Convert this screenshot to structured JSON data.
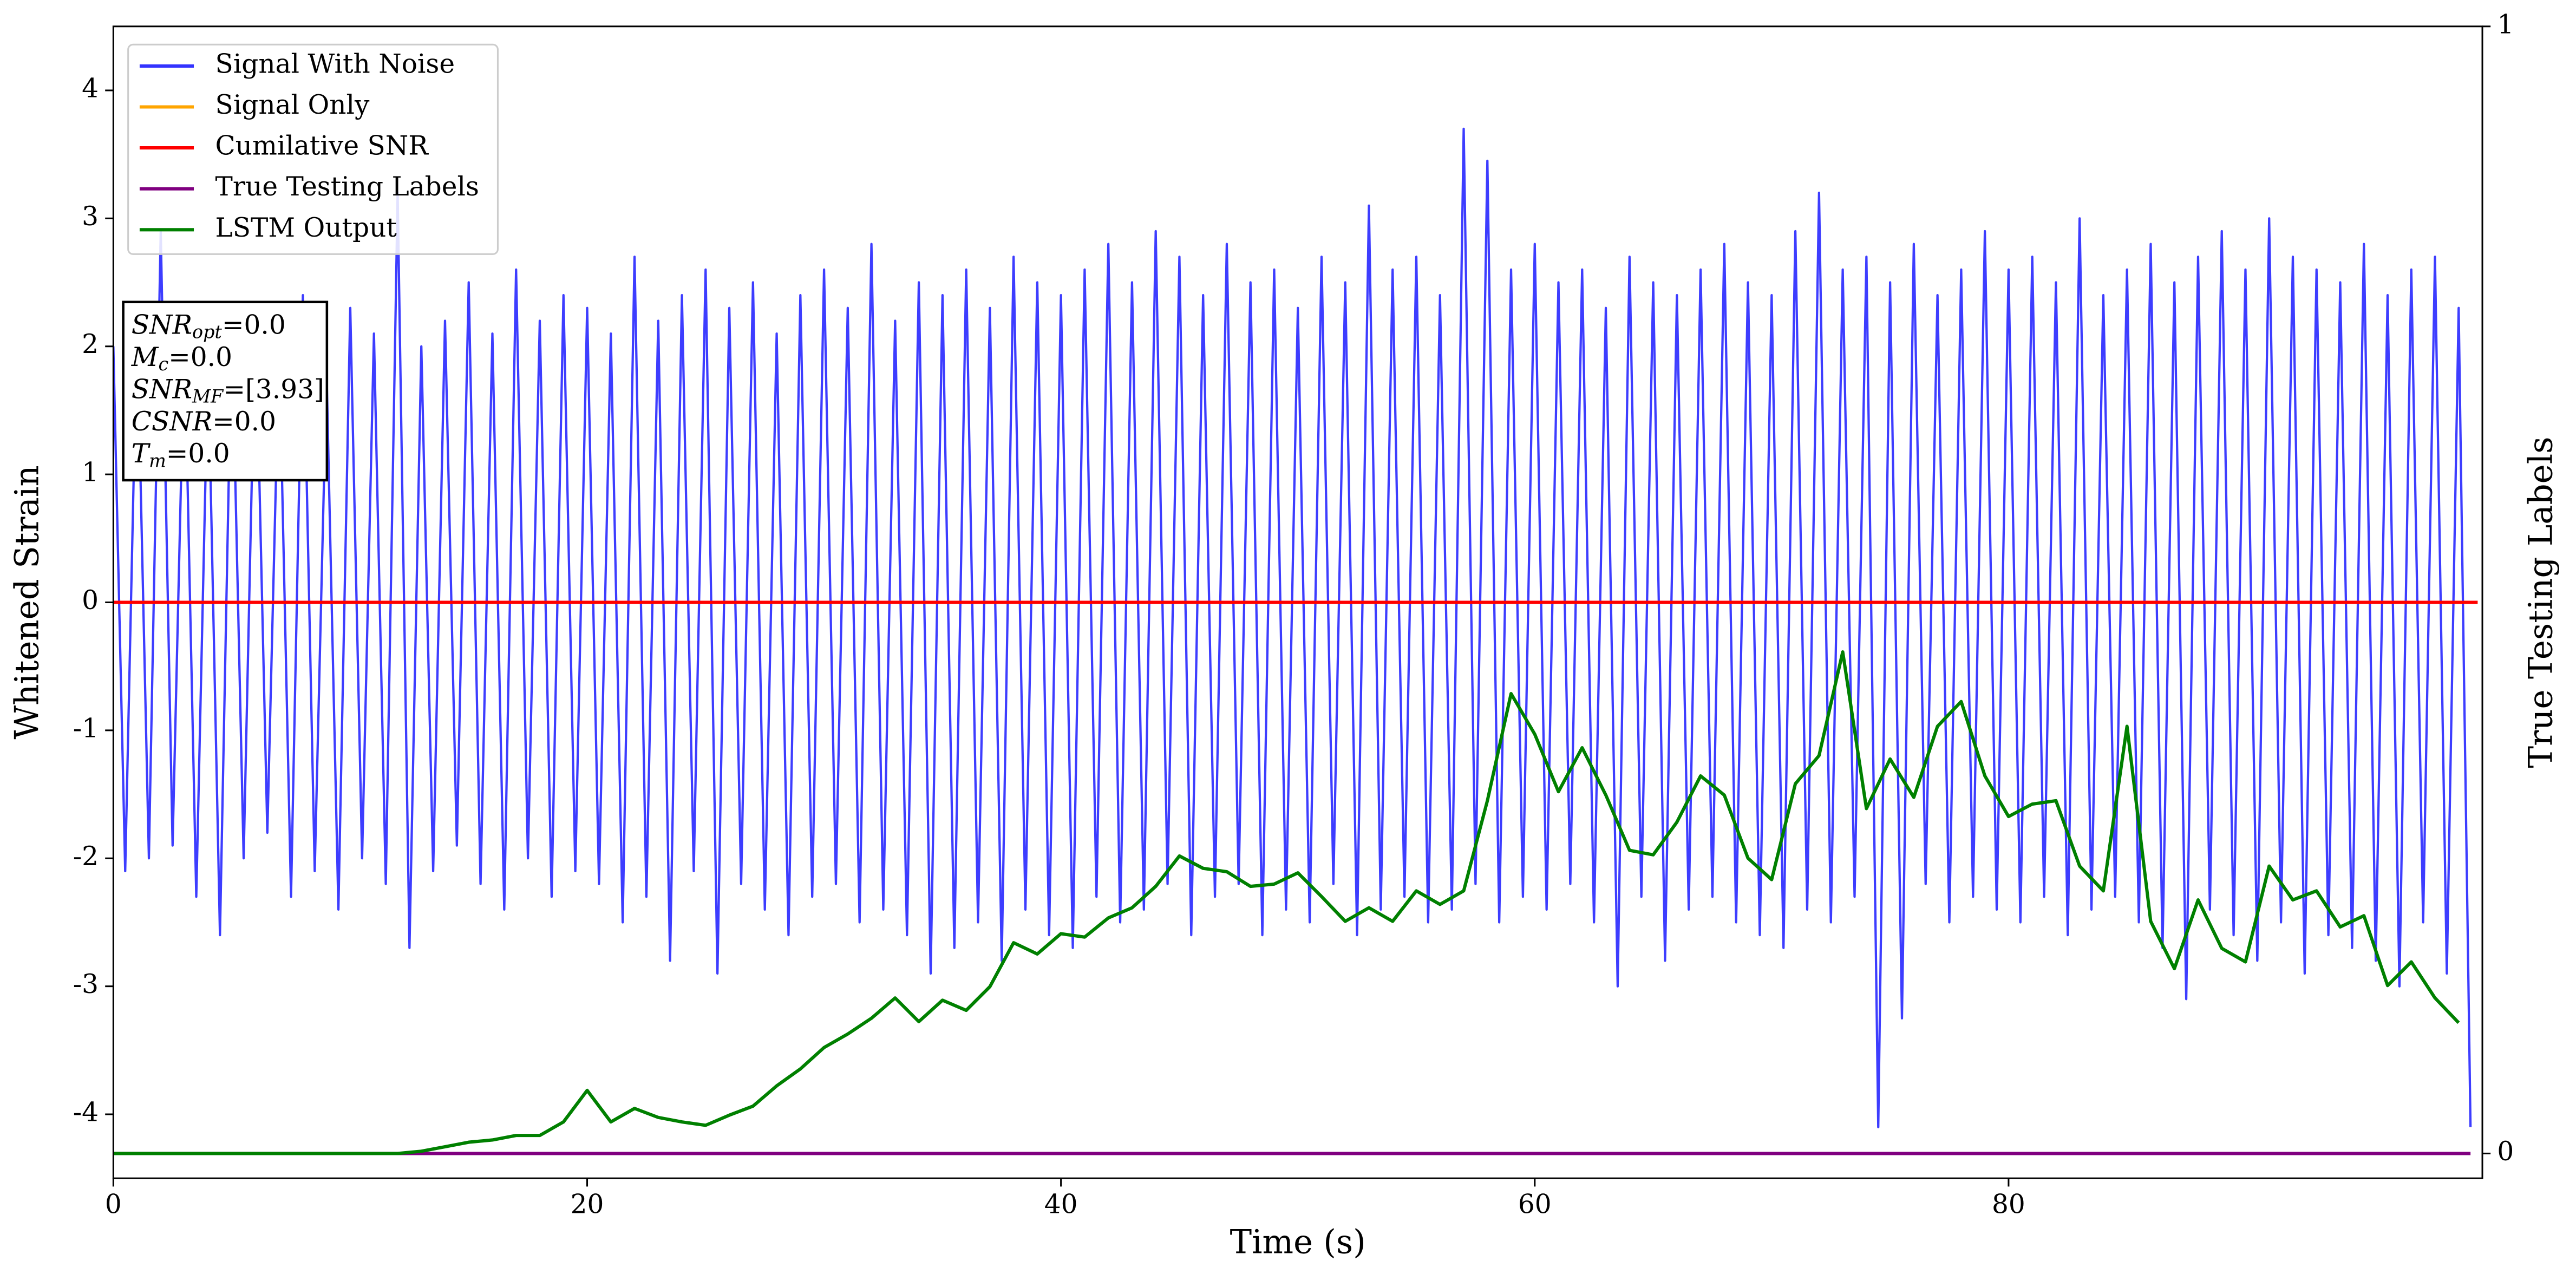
{
  "chart_data": {
    "type": "line",
    "xlabel": "Time (s)",
    "ylabel": "Whitened Strain",
    "y2label": "True Testing Labels",
    "xlim": [
      0,
      100
    ],
    "ylim": [
      -4.5,
      4.5
    ],
    "y2lim": [
      -0.022,
      1
    ],
    "xticks": [
      0,
      20,
      40,
      60,
      80
    ],
    "yticks": [
      -4,
      -3,
      -2,
      -1,
      0,
      1,
      2,
      3,
      4
    ],
    "y2ticks": [
      0,
      1
    ],
    "legend": "upper left",
    "annotation": [
      {
        "symbol": "SNR",
        "subscript": "opt",
        "text": "=0.0"
      },
      {
        "symbol": "M",
        "subscript": "c",
        "text": "=0.0"
      },
      {
        "symbol": "SNR",
        "subscript": "MF",
        "text": "=[3.93]"
      },
      {
        "symbol": "CSNR",
        "text": "=0.0"
      },
      {
        "symbol": "T",
        "subscript": "m",
        "text": "=0.0"
      }
    ],
    "series": [
      {
        "name": "Signal With Noise",
        "color": "#3333ff",
        "x": [
          0,
          0.5,
          1,
          1.5,
          2,
          2.5,
          3,
          3.5,
          4,
          4.5,
          5,
          5.5,
          6,
          6.5,
          7,
          7.5,
          8,
          8.5,
          9,
          9.5,
          10,
          10.5,
          11,
          11.5,
          12,
          12.5,
          13,
          13.5,
          14,
          14.5,
          15,
          15.5,
          16,
          16.5,
          17,
          17.5,
          18,
          18.5,
          19,
          19.5,
          20,
          20.5,
          21,
          21.5,
          22,
          22.5,
          23,
          23.5,
          24,
          24.5,
          25,
          25.5,
          26,
          26.5,
          27,
          27.5,
          28,
          28.5,
          29,
          29.5,
          30,
          30.5,
          31,
          31.5,
          32,
          32.5,
          33,
          33.5,
          34,
          34.5,
          35,
          35.5,
          36,
          36.5,
          37,
          37.5,
          38,
          38.5,
          39,
          39.5,
          40,
          40.5,
          41,
          41.5,
          42,
          42.5,
          43,
          43.5,
          44,
          44.5,
          45,
          45.5,
          46,
          46.5,
          47,
          47.5,
          48,
          48.5,
          49,
          49.5,
          50,
          50.5,
          51,
          51.5,
          52,
          52.5,
          53,
          53.5,
          54,
          54.5,
          55,
          55.5,
          56,
          56.5,
          57,
          57.5,
          58,
          58.5,
          59,
          59.5,
          60,
          60.5,
          61,
          61.5,
          62,
          62.5,
          63,
          63.5,
          64,
          64.5,
          65,
          65.5,
          66,
          66.5,
          67,
          67.5,
          68,
          68.5,
          69,
          69.5,
          70,
          70.5,
          71,
          71.5,
          72,
          72.5,
          73,
          73.5,
          74,
          74.5,
          75,
          75.5,
          76,
          76.5,
          77,
          77.5,
          78,
          78.5,
          79,
          79.5,
          80,
          80.5,
          81,
          81.5,
          82,
          82.5,
          83,
          83.5,
          84,
          84.5,
          85,
          85.5,
          86,
          86.5,
          87,
          87.5,
          88,
          88.5,
          89,
          89.5,
          90,
          90.5,
          91,
          91.5,
          92,
          92.5,
          93,
          93.5,
          94,
          94.5,
          95,
          95.5,
          96,
          96.5,
          97,
          97.5,
          98,
          98.5,
          99,
          99.5
        ],
        "values": [
          2.0,
          -2.1,
          2.2,
          -2.0,
          2.9,
          -1.9,
          2.1,
          -2.3,
          1.9,
          -2.6,
          2.2,
          -2.0,
          2.3,
          -1.8,
          2.0,
          -2.3,
          2.4,
          -2.1,
          1.8,
          -2.4,
          2.3,
          -2.0,
          2.1,
          -2.2,
          3.2,
          -2.7,
          2.0,
          -2.1,
          2.2,
          -1.9,
          2.5,
          -2.2,
          2.1,
          -2.4,
          2.6,
          -2.0,
          2.2,
          -2.3,
          2.4,
          -2.1,
          2.3,
          -2.2,
          2.1,
          -2.5,
          2.7,
          -2.3,
          2.2,
          -2.8,
          2.4,
          -2.1,
          2.6,
          -2.9,
          2.3,
          -2.2,
          2.5,
          -2.4,
          2.1,
          -2.6,
          2.4,
          -2.3,
          2.6,
          -2.2,
          2.3,
          -2.5,
          2.8,
          -2.4,
          2.2,
          -2.6,
          2.5,
          -2.9,
          2.4,
          -2.7,
          2.6,
          -2.5,
          2.3,
          -2.8,
          2.7,
          -2.4,
          2.5,
          -2.6,
          2.4,
          -2.7,
          2.6,
          -2.3,
          2.8,
          -2.5,
          2.5,
          -2.4,
          2.9,
          -2.2,
          2.7,
          -2.6,
          2.4,
          -2.3,
          2.8,
          -2.2,
          2.5,
          -2.6,
          2.6,
          -2.4,
          2.3,
          -2.5,
          2.7,
          -2.2,
          2.5,
          -2.6,
          3.1,
          -2.4,
          2.6,
          -2.3,
          2.7,
          -2.5,
          2.4,
          -2.4,
          3.7,
          -2.2,
          3.45,
          -2.5,
          2.6,
          -2.3,
          2.8,
          -2.4,
          2.5,
          -2.2,
          2.6,
          -2.5,
          2.3,
          -3.0,
          2.7,
          -2.3,
          2.5,
          -2.8,
          2.4,
          -2.4,
          2.6,
          -2.3,
          2.8,
          -2.5,
          2.5,
          -2.6,
          2.4,
          -2.7,
          2.9,
          -2.4,
          3.2,
          -2.5,
          2.6,
          -2.3,
          2.7,
          -4.1,
          2.5,
          -3.25,
          2.8,
          -2.2,
          2.4,
          -2.5,
          2.6,
          -2.3,
          2.9,
          -2.4,
          2.6,
          -2.5,
          2.7,
          -2.3,
          2.5,
          -2.6,
          3.0,
          -2.4,
          2.4,
          -2.3,
          2.6,
          -2.5,
          2.8,
          -2.7,
          2.5,
          -3.1,
          2.7,
          -2.4,
          2.9,
          -2.6,
          2.6,
          -2.8,
          3.0,
          -2.5,
          2.7,
          -2.9,
          2.6,
          -2.6,
          2.5,
          -2.7,
          2.8,
          -2.8,
          2.4,
          -3.0,
          2.6,
          -2.5,
          2.7,
          -2.9,
          2.3,
          -4.1
        ]
      },
      {
        "name": "Signal Only",
        "color": "#ffa500",
        "x": [
          0,
          99.8
        ],
        "values": [
          0,
          0
        ]
      },
      {
        "name": "Cumilative SNR",
        "color": "#ff0000",
        "x": [
          0,
          99.8
        ],
        "values": [
          0,
          0
        ]
      },
      {
        "name": "True Testing Labels",
        "color": "#800080",
        "axis": "y2",
        "x": [
          0,
          99.5
        ],
        "values": [
          0,
          0
        ]
      },
      {
        "name": "LSTM Output",
        "color": "#008000",
        "axis": "y2",
        "x": [
          0,
          1,
          2,
          3,
          4,
          5,
          6,
          7,
          8,
          9,
          10,
          11,
          12,
          13,
          14,
          15,
          16,
          17,
          18,
          19,
          20,
          21,
          22,
          23,
          24,
          25,
          26,
          27,
          28,
          29,
          30,
          31,
          32,
          33,
          34,
          35,
          36,
          37,
          38,
          39,
          40,
          41,
          42,
          43,
          44,
          45,
          46,
          47,
          48,
          49,
          50,
          51,
          52,
          53,
          54,
          55,
          56,
          57,
          58,
          59,
          60,
          61,
          62,
          63,
          64,
          65,
          66,
          67,
          68,
          69,
          70,
          71,
          72,
          73,
          74,
          75,
          76,
          77,
          78,
          79,
          80,
          81,
          82,
          83,
          84,
          85,
          86,
          87,
          88,
          89,
          90,
          91,
          92,
          93,
          94,
          95,
          96,
          97,
          98,
          99
        ],
        "values": [
          0,
          0,
          0,
          0,
          0,
          0,
          0,
          0,
          0,
          0,
          0,
          0,
          0,
          0.002,
          0.006,
          0.01,
          0.012,
          0.016,
          0.016,
          0.028,
          0.056,
          0.028,
          0.04,
          0.032,
          0.028,
          0.025,
          0.034,
          0.042,
          0.06,
          0.075,
          0.094,
          0.106,
          0.12,
          0.138,
          0.117,
          0.136,
          0.127,
          0.148,
          0.187,
          0.177,
          0.195,
          0.192,
          0.209,
          0.218,
          0.237,
          0.264,
          0.253,
          0.25,
          0.237,
          0.239,
          0.249,
          0.228,
          0.206,
          0.218,
          0.206,
          0.233,
          0.221,
          0.233,
          0.313,
          0.408,
          0.372,
          0.321,
          0.36,
          0.318,
          0.269,
          0.265,
          0.294,
          0.335,
          0.318,
          0.262,
          0.243,
          0.328,
          0.353,
          0.445,
          0.306,
          0.35,
          0.316,
          0.379,
          0.401,
          0.335,
          0.299,
          0.31,
          0.313,
          0.255,
          0.233,
          0.379,
          0.206,
          0.164,
          0.225,
          0.182,
          0.17,
          0.255,
          0.225,
          0.233,
          0.201,
          0.211,
          0.149,
          0.17,
          0.138,
          0.116
        ]
      }
    ]
  }
}
